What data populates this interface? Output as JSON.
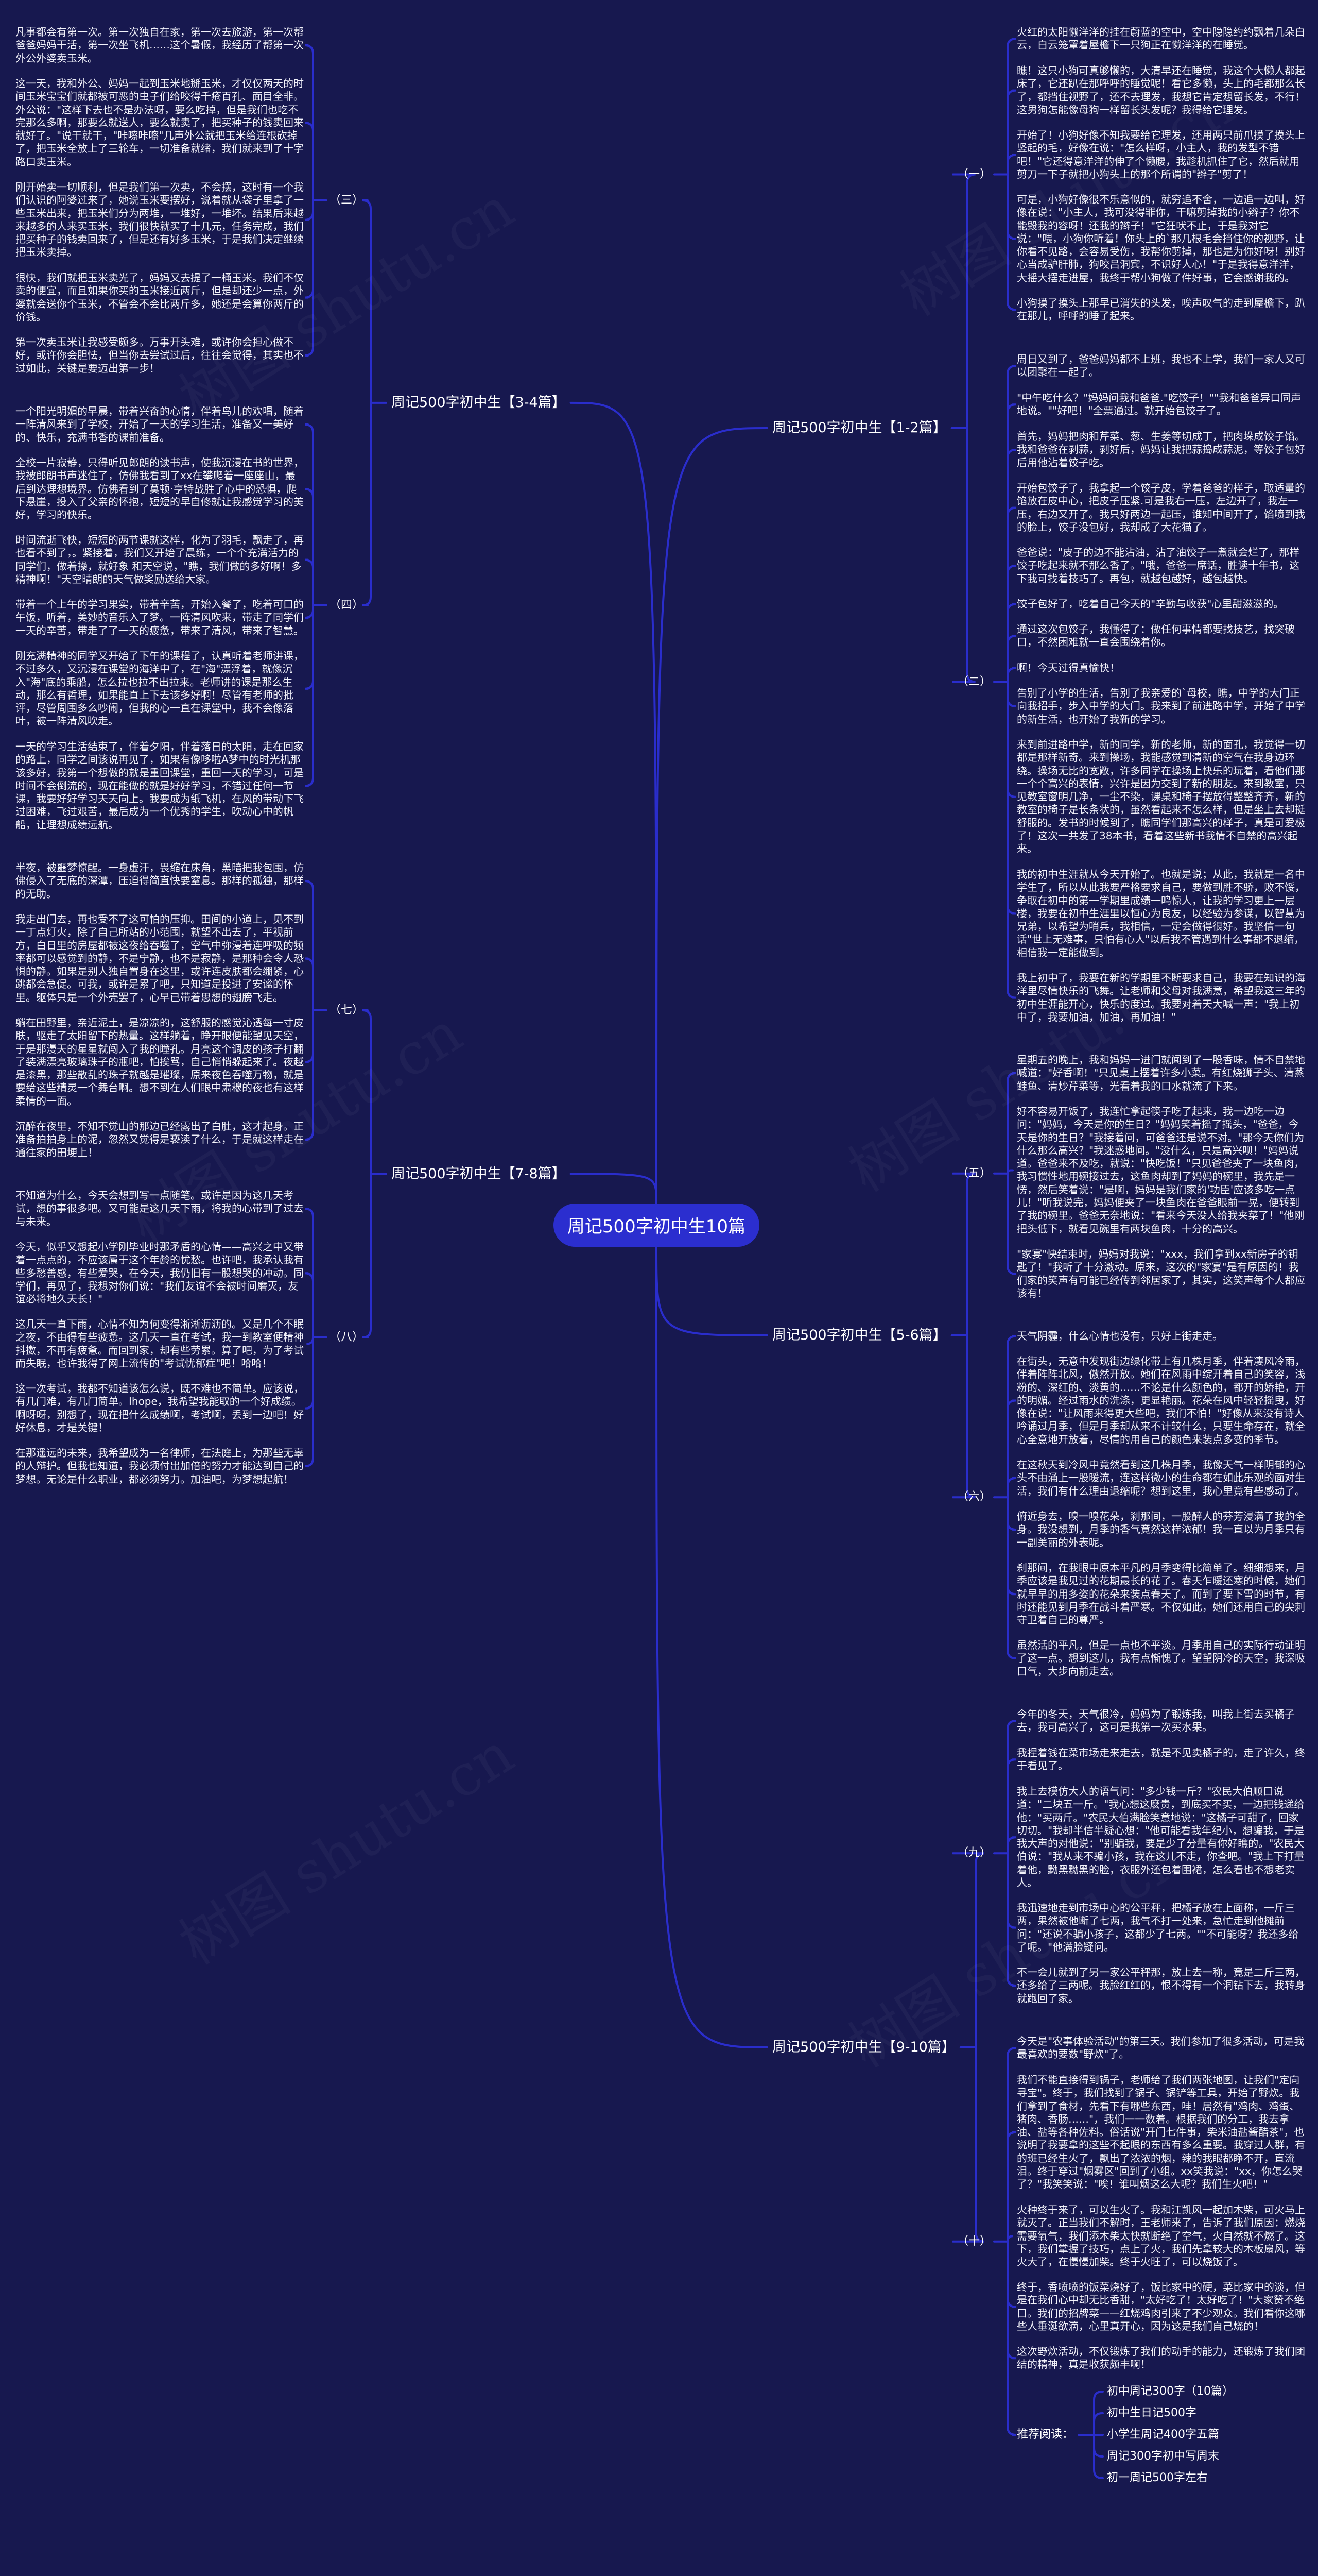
{
  "title": "周记500字初中生10篇",
  "watermark": "树图 shutu.cn",
  "colors": {
    "background": "#17184f",
    "connector": "#2a2dcc",
    "center_node": "#2b2ecf",
    "text": "#f2f2fa"
  },
  "branches": [
    {
      "label": "周记500字初中生【1-2篇】",
      "groups": [
        {
          "label": "（一）",
          "paragraphs": [
            "火红的太阳懒洋洋的挂在蔚蓝的空中，空中隐隐约约飘着几朵白云，白云笼罩着屋檐下一只狗正在懒洋洋的在睡觉。",
            "瞧！这只小狗可真够懒的，大清早还在睡觉，我这个大懒人都起床了，它还趴在那呼呼的睡觉呢！看它多懒，头上的毛都那么长了，都挡住视野了，还不去理发，我想它肯定想留长发，不行！这男狗怎能像母狗一样留长头发呢？我得给它理发。",
            "开始了！小狗好像不知我要给它理发，还用两只前爪摸了摸头上竖起的毛，好像在说：\"怎么样呀，小主人，我的发型不错吧！\"它还得意洋洋的伸了个懒腰，我趁机抓住了它，然后就用剪刀一下子就把小狗头上的那个所谓的\"辫子\"剪了！",
            "可是，小狗好像很不乐意似的，就穷追不舍，一边追一边叫，好像在说：\"小主人，我可没得罪你，干嘛剪掉我的小辫子？你不能毁我的容呀！还我的辫子！\"它狂吠不止，于是我对它说：\"喂，小狗你听着！你头上的`那几根毛会挡住你的视野，让你看不见路，会容易受伤，我帮你剪掉，那也是为你好呀！别好心当成驴肝肺，狗咬吕洞宾，不识好人心！\"于是我得意洋洋，大摇大摆走进屋，我终于帮小狗做了件好事，它会感谢我的。",
            "小狗摸了摸头上那早已消失的头发，唉声叹气的走到屋檐下，趴在那儿，呼呼的睡了起来。"
          ]
        },
        {
          "label": "（二）",
          "paragraphs": [
            "周日又到了，爸爸妈妈都不上班，我也不上学，我们一家人又可以团聚在一起了。",
            "\"中午吃什么？\"妈妈问我和爸爸.\"吃饺子！\"\"我和爸爸异口同声地说。\"\"好吧！\"全票通过。就开始包饺子了。",
            "首先，妈妈把肉和芹菜、葱、生姜等切成丁，把肉垛成饺子馅。我和爸爸在剥蒜，剥好后，妈妈让我把蒜捣成蒜泥，等饺子包好后用他沾着饺子吃。",
            "开始包饺子了，我拿起一个饺子皮，学着爸爸的样子，取适量的馅放在皮中心，把皮子压紧.可是我右一压，左边开了，我左一压，右边又开了。我只好两边一起压，谁知中间开了，馅喷到我的脸上，饺子没包好，我却成了大花猫了。",
            "爸爸说：\"皮子的边不能沾油，沾了油饺子一煮就会烂了，那样饺子吃起来就不那么香了。\"哦，爸爸一席话，胜读十年书，这下我可找着技巧了。再包，就越包越好，越包越快。",
            "饺子包好了，吃着自己今天的\"辛勤与收获\"心里甜滋滋的。",
            "通过这次包饺子，我懂得了：做任何事情都要找技艺，找突破口，不然困难就一直会围绕着你。",
            "啊！今天过得真愉快！",
            "告别了小学的生活，告别了我亲爱的`母校，瞧，中学的大门正向我招手，步入中学的大门。我来到了前进路中学，开始了中学的新生活，也开始了我新的学习。",
            "来到前进路中学，新的同学，新的老师，新的面孔，我觉得一切都是那样新奇。来到操场，我能感觉到清新的空气在我身边环绕。操场无比的宽敞，许多同学在操场上快乐的玩着，看他们那一个个高兴的表情，兴许是因为交到了新的朋友。来到教室，只见教室窗明几净，一尘不染，课桌和椅子摆放得整整齐齐，新的教室的椅子是长条状的，虽然看起来不怎么样，但是坐上去却挺舒服的。发书的时候到了，瞧同学们那高兴的样子，真是可爱极了！这次一共发了38本书，看着这些新书我情不自禁的高兴起来。",
            "我的初中生涯就从今天开始了。也就是说；从此，我就是一名中学生了，所以从此我要严格要求自己，要做到胜不骄，败不馁，争取在初中的第一学期里成绩一鸣惊人，让我的学习更上一层楼，我要在初中生涯里以恒心为良友，以经验为参谋，以智慧为兄弟，以希望为哨兵，我相信，一定会做得很好。我坚信一句话\"世上无难事，只怕有心人\"以后我不管遇到什么事都不退缩，相信我一定能做到。",
            "我上初中了，我要在新的学期里不断要求自己，我要在知识的海洋里尽情快乐的飞舞。让老师和父母对我满意，希望我这三年的初中生涯能开心，快乐的度过。我要对着天大喊一声：\"我上初中了，我要加油，加油，再加油！\""
          ]
        }
      ]
    },
    {
      "label": "周记500字初中生【3-4篇】",
      "groups": [
        {
          "label": "（三）",
          "paragraphs": [
            "凡事都会有第一次。第一次独自在家，第一次去旅游，第一次帮爸爸妈妈干活，第一次坐飞机……这个暑假，我经历了帮第一次外公外婆卖玉米。",
            "这一天，我和外公、妈妈一起到玉米地掰玉米，才仅仅两天的时间玉米宝宝们就都被可恶的虫子们给咬得千疮百孔、面目全非。外公说：\"这样下去也不是办法呀，要么吃掉，但是我们也吃不完那么多啊，那要么就送人，要么就卖了，把买种子的钱卖回来就好了。\"说干就干，\"咔嚓咔嚓\"几声外公就把玉米给连根砍掉了，把玉米全放上了三轮车，一切准备就绪，我们就来到了十字路口卖玉米。",
            "刚开始卖一切顺利，但是我们第一次卖，不会摆，这时有一个我们认识的阿婆过来了，她说玉米要摆好，说着就从袋子里拿了一些玉米出来，把玉米们分为两堆，一堆好，一堆坏。结果后来越来越多的人来买玉米，我们很快就买了十几元，任务完成，我们把买种子的钱卖回来了，但是还有好多玉米，于是我们决定继续把玉米卖掉。",
            "很快，我们就把玉米卖光了，妈妈又去提了一桶玉米。我们不仅卖的便宜，而且如果你买的玉米接近两斤，但是却还少一点，外婆就会送你个玉米，不管会不会比两斤多，她还是会算你两斤的价钱。",
            "第一次卖玉米让我感受颇多。万事开头难，或许你会担心做不好，或许你会胆怯，但当你去尝试过后，往往会觉得，其实也不过如此，关键是要迈出第一步！"
          ]
        },
        {
          "label": "（四）",
          "paragraphs": [
            "一个阳光明媚的早晨，带着兴奋的心情，伴着鸟儿的欢唱，随着一阵清风来到了学校，开始了一天的学习生活，准备又一美好的、快乐，充满书香的课前准备。",
            "全校一片寂静，只得听见郎朗的读书声，使我沉浸在书的世界，我被郎朗书声迷住了，仿佛我看到了xx在攀爬着一座座山，最后到达理想境界。仿佛看到了莫顿·亨特战胜了心中的恐惧，爬下悬崖，投入了父亲的怀抱，短短的早自修就让我感觉学习的美好，学习的快乐。",
            "时间流逝飞快，短短的两节课就这样，化为了羽毛，飘走了，再也看不到了，。紧接着，我们又开始了晨练，一个个充满活力的同学们，做着操，就好象 和天空说，\"瞧，我们做的多好啊！多精神啊！\"天空晴朗的天气做奖励送给大家。",
            "带着一个上午的学习果实，带着辛苦，开始入餐了，吃着可口的午饭，听着，美妙的音乐入了梦。一阵清风吹来，带走了同学们一天的辛苦，带走了了一天的疲惫，带来了清风，带来了智慧。",
            "刚充满精神的同学又开始了下午的课程了，认真听着老师讲课，不过多久，又沉浸在课堂的海洋中了，在\"海\"漂浮着，就像沉入\"海\"底的乘船，怎么拉也拉不出拉来。老师讲的课是那么生动，那么有哲理，如果能直上下去该多好啊！尽管有老师的批评，尽管周围多么吵闹，但我的心一直在课堂中，我不会像落叶，被一阵清风吹走。",
            "一天的学习生活结束了，伴着夕阳，伴着落日的太阳，走在回家的路上，同学之间该说再见了，如果有像哆啦A梦中的时光机那该多好，我第一个想做的就是重回课堂，重回一天的学习，可是时间不会倒流的，现在能做的就是好好学习，不错过任何一节课，我要好好学习天天向上。我要成为纸飞机，在风的带动下飞过困难，飞过艰苦，最后成为一个优秀的学生，吹动心中的帆船，让理想成绩远航。"
          ]
        }
      ]
    },
    {
      "label": "周记500字初中生【5-6篇】",
      "groups": [
        {
          "label": "（五）",
          "paragraphs": [
            "星期五的晚上，我和妈妈一进门就闻到了一股香味，情不自禁地喊道：\"好香啊！\"只见桌上摆着许多小菜。有红烧狮子头、清蒸鲑鱼、清炒芹菜等，光看着我的口水就流了下来。",
            "好不容易开饭了，我连忙拿起筷子吃了起来，我一边吃一边问：\"妈妈，今天是你的生日？\"妈妈笑着摇了摇头，\"爸爸，今天是你的生日？\"我接着问，可爸爸还是说不对。\"那今天你们为什么那么高兴？\"我迷惑地问。\"没什么，只是高兴呗！\"妈妈说道。爸爸来不及吃，就说：\"快吃饭！\"只见爸爸夹了一块鱼肉，我习惯性地用碗接过去，这鱼肉却到了妈妈的碗里，我先是一愣，然后笑着说：\"是啊，妈妈是我们家的'功臣'应该多吃一点儿！\"听我说完，妈妈便夹了一块鱼肉在爸爸眼前一晃，便转到了我的碗里。爸爸无奈地说：\"看来今天没人给我夹菜了！\"他刚把头低下，就看见碗里有两块鱼肉，十分的高兴。",
            "\"家宴\"快结束时，妈妈对我说：\"xxx，我们拿到xx新房子的钥匙了！\"我听了十分激动。原来，这次的\"家宴\"是有原因的！我们家的笑声有可能已经传到邻居家了，其实，这笑声每个人都应该有！"
          ]
        },
        {
          "label": "（六）",
          "paragraphs": [
            "天气阴霾，什么心情也没有，只好上街走走。",
            "在街头，无意中发现街边绿化带上有几株月季，伴着凄风冷雨，伴着阵阵北风，傲然开放。她们在风雨中绽开着自己的笑容，浅粉的、深红的、淡黄的……不论是什么颜色的，都开的娇艳，开的明媚。经过雨水的洗涤，更显艳丽。花朵在风中轻轻摇曳，好像在说：\"让风雨来得更大些吧，我们不怕！\"好像从来没有诗人吟诵过月季，但是月季却从来不计较什么，只要生命存在，就全心全意地开放着，尽情的用自己的颜色来装点多变的季节。",
            "在这秋天到冷风中竟然看到这几株月季，我像天气一样阴郁的心头不由涌上一股暖流，连这样微小的生命都在如此乐观的面对生活，我们有什么理由退缩呢？想到这里，我心里竟有些感动了。",
            "俯近身去，嗅一嗅花朵，刹那间，一股醉人的芬芳浸满了我的全身。我没想到，月季的香气竟然这样浓郁！我一直以为月季只有一副美丽的外表呢。",
            "刹那间，在我眼中原本平凡的月季变得比简单了。细细想来，月季应该是我见过的花期最长的花了。春天乍暖还寒的时候，她们就早早的用多姿的花朵来装点春天了。而到了要下雪的时节，有时还能见到月季在战斗着严寒。不仅如此，她们还用自己的尖刺守卫着自己的尊严。",
            "虽然活的平凡，但是一点也不平淡。月季用自己的实际行动证明了这一点。想到这儿，我有点惭愧了。望望阴冷的天空，我深吸口气，大步向前走去。"
          ]
        }
      ]
    },
    {
      "label": "周记500字初中生【7-8篇】",
      "groups": [
        {
          "label": "（七）",
          "paragraphs": [
            "半夜，被噩梦惊醒。一身虚汗，畏缩在床角，黑暗把我包围，仿佛侵入了无底的深潭，压迫得简直快要窒息。那样的孤独，那样的无助。",
            "我走出门去，再也受不了这可怕的压抑。田间的小道上，见不到一丁点灯火，除了自己所站的小范围，就望不出去了，平视前方，白日里的房屋都被这夜给吞噬了，空气中弥漫着连呼吸的频率都可以感觉到的静，不是宁静，也不是寂静，是那种会令人恐惧的静。如果是别人独自置身在这里，或许连皮肤都会绷紧，心跳都会急促。可我，或许是累了吧，只知道是投进了安谧的怀里。躯体只是一个外壳罢了，心早已带着思想的翅膀飞走。",
            "躺在田野里，亲近泥土，是凉凉的，这舒服的感觉沁透每一寸皮肤，驱走了太阳留下的热量。这样躺着，睁开眼便能望见天空，于是那漫天的星星就闯入了我的瞳孔。月亮这个调皮的孩子打翻了装满漂亮玻璃珠子的瓶吧，怕挨骂，自己悄悄躲起来了。夜越是漆黑，那些散乱的珠子就越是璀璨，原来夜色吞噬万物，就是要给这些精灵一个舞台啊。想不到在人们眼中肃穆的夜也有这样柔情的一面。",
            "沉醉在夜里，不知不觉山的那边已经露出了白肚，这才起身。正准备拍拍身上的泥，忽然又觉得是亵渎了什么，于是就这样走在通往家的田埂上！"
          ]
        },
        {
          "label": "（八）",
          "paragraphs": [
            "不知道为什么，今天会想到写一点随笔。或许是因为这几天考试，想的事很多吧。又可能是这几天下雨，将我的心带到了过去与未来。",
            "今天，似乎又想起小学刚毕业时那矛盾的心情——高兴之中又带着一点点的，不应该属于这个年龄的忧愁。也许吧，我承认我有些多愁善感，有些爱哭，在今天，我仍旧有一股想哭的冲动。同学们，再见了，我想对你们说：\"我们友谊不会被时间磨灭，友谊必将地久天长！\"",
            "这几天一直下雨，心情不知为何变得淅淅沥沥的。又是几个不眠之夜，不由得有些疲惫。这几天一直在考试，我一到教室便精神抖擞，不再有疲惫。而回到家，却有些劳累。算了吧，为了考试而失眠，也许我得了网上流传的\"考试忧郁症\"吧！哈哈！",
            "这一次考试，我都不知道该怎么说，既不难也不简单。应该说，有几门难，有几门简单。Ihope，我希望我能取的一个好成绩。啊呀呀，别想了，现在把什么成绩啊，考试啊，丢到一边吧！好好休息，才是关键！",
            "在那遥远的未来，我希望成为一名律师，在法庭上，为那些无辜的人辩护。但我也知道，我必须付出加倍的努力才能达到自己的梦想。无论是什么职业，都必须努力。加油吧，为梦想起航！"
          ]
        }
      ]
    },
    {
      "label": "周记500字初中生【9-10篇】",
      "groups": [
        {
          "label": "（九）",
          "paragraphs": [
            "今年的冬天，天气很冷，妈妈为了锻炼我，叫我上街去买橘子去，我可高兴了，这可是我第一次买水果。",
            "我捏着钱在菜市场走来走去，就是不见卖橘子的，走了许久，终于看见了。",
            "我上去模仿大人的语气问：\"多少钱一斤？\"农民大伯顺口说道：\"二块五一斤。\"我心想这麽贵，到底买不买，一边把钱递给他：\"买两斤。\"农民大伯满脸笑意地说：\"这橘子可甜了，回家切切。\"我却半信半疑心想：\"他可能看我年纪小，想骗我，于是我大声的对他说：\"别骗我，要是少了分量有你好瞧的。\"农民大伯说：\"我从来不骗小孩，我在这儿不走，你查吧。\"我上下打量着他，黝黑黝黑的脸，衣服外还包着围裙，怎么看也不想老实人。",
            "我迅速地走到市场中心的公平秤，把橘子放在上面称，一斤三两，果然被他断了七两，我气不打一处来，急忙走到他摊前问：\"还说不骗小孩子，这都少了七两。\"\"不可能呀？我还多给了呢。\"他满脸疑问。",
            "不一会儿就到了另一家公平秤那，放上去一称，竟是二斤三两，还多给了三两呢。我脸红红的，恨不得有一个洞钻下去，我转身就跑回了家。"
          ]
        },
        {
          "label": "（十）",
          "paragraphs": [
            "今天是\"农事体验活动\"的第三天。我们参加了很多活动，可是我最喜欢的要数\"野炊\"了。",
            "我们不能直接得到锅子，老师给了我们两张地图，让我们\"定向寻宝\"。终于，我们找到了锅子、锅铲等工具，开始了野炊。我们拿到了食材，先看下有哪些东西，哇！居然有\"鸡肉、鸡蛋、猪肉、香肠……\"，我们一一数着。根据我们的分工，我去拿油、盐等各种佐料。俗话说\"开门七件事，柴米油盐酱醋茶\"，也说明了我要拿的这些不起眼的东西有多么重要。我穿过人群，有的班已经生火了，飘出了浓浓的烟，辣的我眼都睁不开，直流泪。终于穿过\"烟雾区\"回到了小组。xx笑我说：\"xx，你怎么哭了？\"我笑笑说：\"唉！谁叫烟这么大呢？我们生火吧！\"",
            "火种终于来了，可以生火了。我和江凯风一起加木柴，可火马上就灭了。正当我们不解时，王老师来了，告诉了我们原因：燃烧需要氧气，我们添木柴太快就断绝了空气，火自然就不燃了。这下，我们掌握了技巧，点上了火，我们先拿较大的木板扇风，等火大了，在慢慢加柴。终于火旺了，可以烧饭了。",
            "终于，香喷喷的饭菜烧好了，饭比家中的硬，菜比家中的淡，但是在我们心中却无比香甜，\"太好吃了！太好吃了！\"大家赞不绝口。我们的招牌菜——红烧鸡肉引来了不少观众。我们看你这哪些人垂涎欲滴，心里真开心，因为这是我们自己烧的！",
            "这次野炊活动，不仅锻炼了我们的动手的能力，还锻炼了我们团结的精神，真是收获颇丰啊！"
          ]
        }
      ],
      "recommend": {
        "label": "推荐阅读：",
        "items": [
          "初中周记300字（10篇）",
          "初中生日记500字",
          "小学生周记400字五篇",
          "周记300字初中写周末",
          "初一周记500字左右"
        ]
      }
    }
  ]
}
